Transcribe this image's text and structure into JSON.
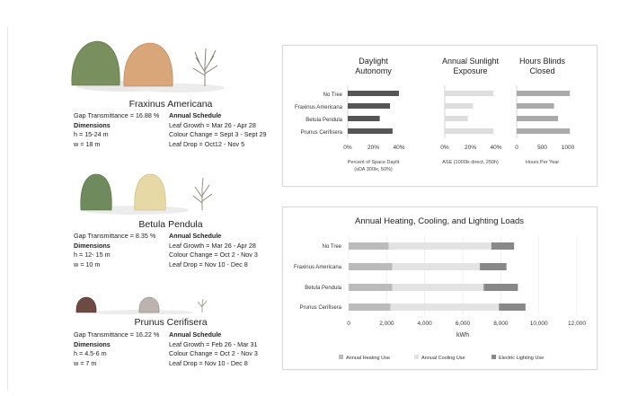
{
  "trees": [
    {
      "name": "Fraxinus Americana",
      "gap": "Gap Transmittance = 16.88 %",
      "dims_label": "Dimensions",
      "h": "h = 15-24 m",
      "w": "w = 18 m",
      "schedule_label": "Annual Schedule",
      "growth": "Leaf Growth = Mar 26 - Apr 28",
      "colour": "Colour Change = Sept 3 - Sept 29",
      "drop": "Leaf Drop = Oct12 - Nov 5"
    },
    {
      "name": "Betula Pendula",
      "gap": "Gap Transmittance = 8.35 %",
      "dims_label": "Dimensions",
      "h": "h = 12- 15 m",
      "w": "w = 10 m",
      "schedule_label": "Annual Schedule",
      "growth": "Leaf Growth = Mar 26 - Apr 28",
      "colour": "Colour Change = Oct 2 - Nov 3",
      "drop": "Leaf Drop = Nov 10 - Dec 8"
    },
    {
      "name": "Prunus Cerifisera",
      "gap": "Gap Transmittance = 16.22 %",
      "dims_label": "Dimensions",
      "h": "h = 4.5-6 m",
      "w": "w = 7 m",
      "schedule_label": "Annual Schedule",
      "growth": "Leaf Growth = Feb 26 - Mar 31",
      "colour": "Colour Change = Oct 2 - Nov 3",
      "drop": "Leaf Drop = Nov 10 - Dec 8"
    }
  ],
  "tree_colors": {
    "foliage_green": "#7a8f5e",
    "foliage_orange": "#d9a679",
    "bare": "#8a7f76",
    "betula_light": "#e6d9a6",
    "prunus_dark": "#6d4b42"
  },
  "chart_data": [
    {
      "type": "bar",
      "orientation": "horizontal",
      "title": "Daylight Autonomy",
      "categories": [
        "No Tree",
        "Fraxinus Americana",
        "Betula Pendula",
        "Prunus Cerifisera"
      ],
      "values": [
        0.4,
        0.33,
        0.25,
        0.35
      ],
      "xlim": [
        0,
        0.4
      ],
      "ticks": [
        "0%",
        "20%",
        "40%"
      ],
      "xlabel": "Percent of Space Daylit (sDA 300lx, 50%)",
      "color": "#555555"
    },
    {
      "type": "bar",
      "orientation": "horizontal",
      "title": "Annual Sunlight Exposure",
      "categories": [
        "No Tree",
        "Fraxinus Americana",
        "Betula Pendula",
        "Prunus Cerifisera"
      ],
      "values": [
        0.38,
        0.22,
        0.18,
        0.38
      ],
      "xlim": [
        0,
        0.4
      ],
      "ticks": [
        "0%",
        "20%",
        "40%"
      ],
      "xlabel": "ASE (1000lx direct, 250h)",
      "color": "#dddddd"
    },
    {
      "type": "bar",
      "orientation": "horizontal",
      "title": "Hours Blinds Closed",
      "categories": [
        "No Tree",
        "Fraxinus Americana",
        "Betula Pendula",
        "Prunus Cerifisera"
      ],
      "values": [
        1350,
        950,
        1050,
        1350
      ],
      "xlim": [
        0,
        1300
      ],
      "ticks": [
        "0",
        "500",
        "1000"
      ],
      "xlabel": "Hours Per Year",
      "color": "#aaaaaa"
    },
    {
      "type": "bar",
      "orientation": "horizontal",
      "stacked": true,
      "title": "Annual Heating, Cooling, and Lighting Loads",
      "categories": [
        "No Tree",
        "Fraxinus Americana",
        "Betula Pendula",
        "Prunus Cerifisera"
      ],
      "series": [
        {
          "name": "Annual Heating Use",
          "values": [
            2100,
            2300,
            2300,
            2200
          ],
          "color": "#bbbbbb"
        },
        {
          "name": "Annual Cooling Use",
          "values": [
            5400,
            4600,
            4800,
            5700
          ],
          "color": "#e3e3e3"
        },
        {
          "name": "Electric Lighting Use",
          "values": [
            1200,
            1400,
            1800,
            1400
          ],
          "color": "#888888"
        }
      ],
      "xlim": [
        0,
        12000
      ],
      "ticks": [
        "0",
        "2,000",
        "4,000",
        "6,000",
        "8,000",
        "10,000",
        "12,000"
      ],
      "xlabel": "kWh",
      "legend": "bottom"
    }
  ]
}
